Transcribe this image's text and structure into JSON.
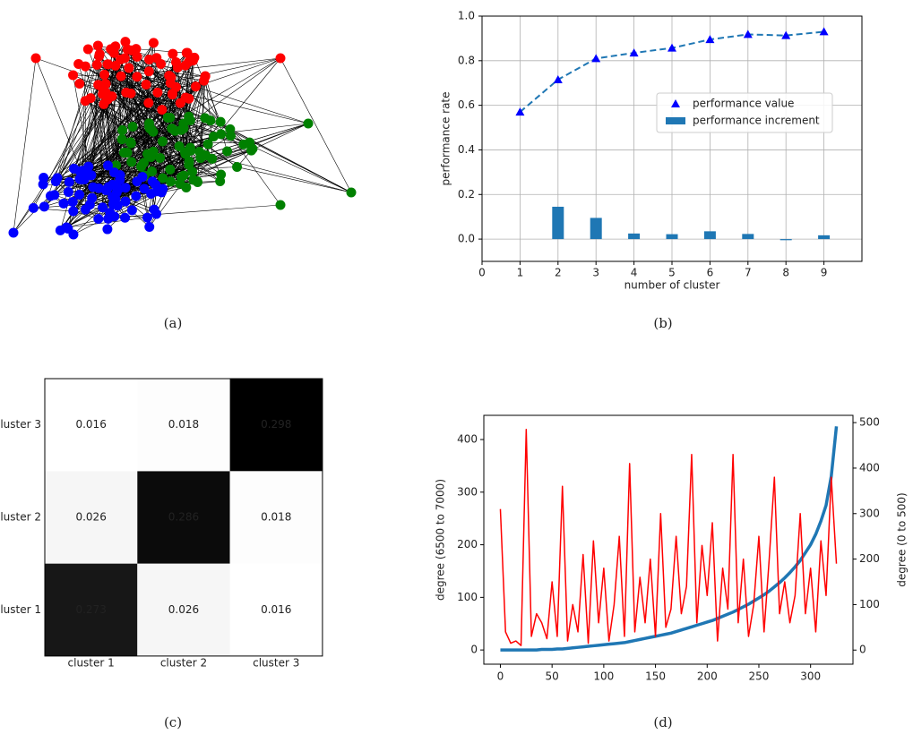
{
  "chart_data": [
    {
      "type": "network",
      "caption": "(a)"
    },
    {
      "type": "combo",
      "caption": "(b)",
      "xlabel": "number of cluster",
      "ylabel": "performance rate",
      "x": [
        1,
        2,
        3,
        4,
        5,
        6,
        7,
        8,
        9
      ],
      "series": [
        {
          "name": "performance value",
          "style": "line",
          "color": "#1f77b4",
          "marker_color": "#0000ff",
          "values": [
            0.57,
            0.715,
            0.81,
            0.835,
            0.857,
            0.895,
            0.918,
            0.913,
            0.93
          ]
        },
        {
          "name": "performance increment",
          "style": "bar",
          "color": "#1f77b4",
          "values": [
            null,
            0.145,
            0.095,
            0.025,
            0.022,
            0.035,
            0.023,
            -0.005,
            0.017
          ]
        }
      ],
      "xlim": [
        0,
        10
      ],
      "xticks": [
        0,
        1,
        2,
        3,
        4,
        5,
        6,
        7,
        8,
        9
      ],
      "ylim": [
        -0.1,
        1.0
      ],
      "yticks": [
        {
          "value": 0,
          "label": "0.0"
        },
        0.2,
        0.4,
        0.6,
        0.8,
        {
          "value": 1,
          "label": "1.0"
        }
      ],
      "grid": true,
      "legend": "center right"
    },
    {
      "type": "heatmap",
      "caption": "(c)",
      "x_categories": [
        "cluster 1",
        "cluster 2",
        "cluster 3"
      ],
      "y_categories": [
        "cluster 1",
        "cluster 2",
        "cluster 3"
      ],
      "values": [
        [
          0.273,
          0.026,
          0.016
        ],
        [
          0.026,
          0.286,
          0.018
        ],
        [
          0.016,
          0.018,
          0.298
        ]
      ],
      "text_color": "#0000ff"
    },
    {
      "type": "dual_line",
      "caption": "(d)",
      "ylabel": "degree (6500 to 7000)",
      "ylabel_color": "#0000ff",
      "y2label": "degree (0 to 500)",
      "y2label_color": "#ff0000",
      "x": [
        0,
        5,
        10,
        15,
        20,
        25,
        30,
        35,
        40,
        45,
        50,
        55,
        60,
        65,
        70,
        75,
        80,
        85,
        90,
        95,
        100,
        105,
        110,
        115,
        120,
        125,
        130,
        135,
        140,
        145,
        150,
        155,
        160,
        165,
        170,
        175,
        180,
        185,
        190,
        195,
        200,
        205,
        210,
        215,
        220,
        225,
        230,
        235,
        240,
        245,
        250,
        255,
        260,
        265,
        270,
        275,
        280,
        285,
        290,
        295,
        300,
        305,
        310,
        315,
        320,
        325
      ],
      "series": [
        {
          "color": "#1f77b4",
          "axis": "y",
          "values": [
            0,
            0,
            0,
            0,
            0,
            0,
            0,
            0,
            1,
            1,
            1,
            2,
            2,
            3,
            4,
            5,
            6,
            7,
            8,
            9,
            10,
            11,
            12,
            13,
            14,
            16,
            18,
            20,
            22,
            24,
            26,
            28,
            30,
            32,
            35,
            38,
            41,
            44,
            47,
            50,
            53,
            56,
            60,
            64,
            68,
            72,
            77,
            82,
            87,
            93,
            99,
            105,
            112,
            120,
            128,
            137,
            147,
            158,
            170,
            185,
            200,
            220,
            245,
            275,
            330,
            425
          ]
        },
        {
          "color": "#ff0000",
          "axis": "y2",
          "values": [
            310,
            40,
            15,
            20,
            10,
            485,
            30,
            80,
            60,
            25,
            150,
            30,
            360,
            20,
            100,
            40,
            210,
            15,
            240,
            60,
            180,
            20,
            100,
            250,
            30,
            410,
            40,
            160,
            60,
            200,
            30,
            300,
            50,
            90,
            250,
            80,
            140,
            430,
            60,
            230,
            120,
            280,
            20,
            180,
            90,
            430,
            60,
            200,
            30,
            100,
            250,
            40,
            200,
            380,
            80,
            150,
            60,
            120,
            300,
            80,
            180,
            40,
            240,
            120,
            380,
            190
          ]
        }
      ],
      "xlim": [
        -16,
        341
      ],
      "xticks": [
        0,
        50,
        100,
        150,
        200,
        250,
        300
      ],
      "ylim": [
        -27,
        446
      ],
      "yticks": [
        0,
        100,
        200,
        300,
        400
      ],
      "y2lim": [
        -31,
        516
      ],
      "y2ticks": [
        0,
        100,
        200,
        300,
        400,
        500
      ]
    }
  ]
}
